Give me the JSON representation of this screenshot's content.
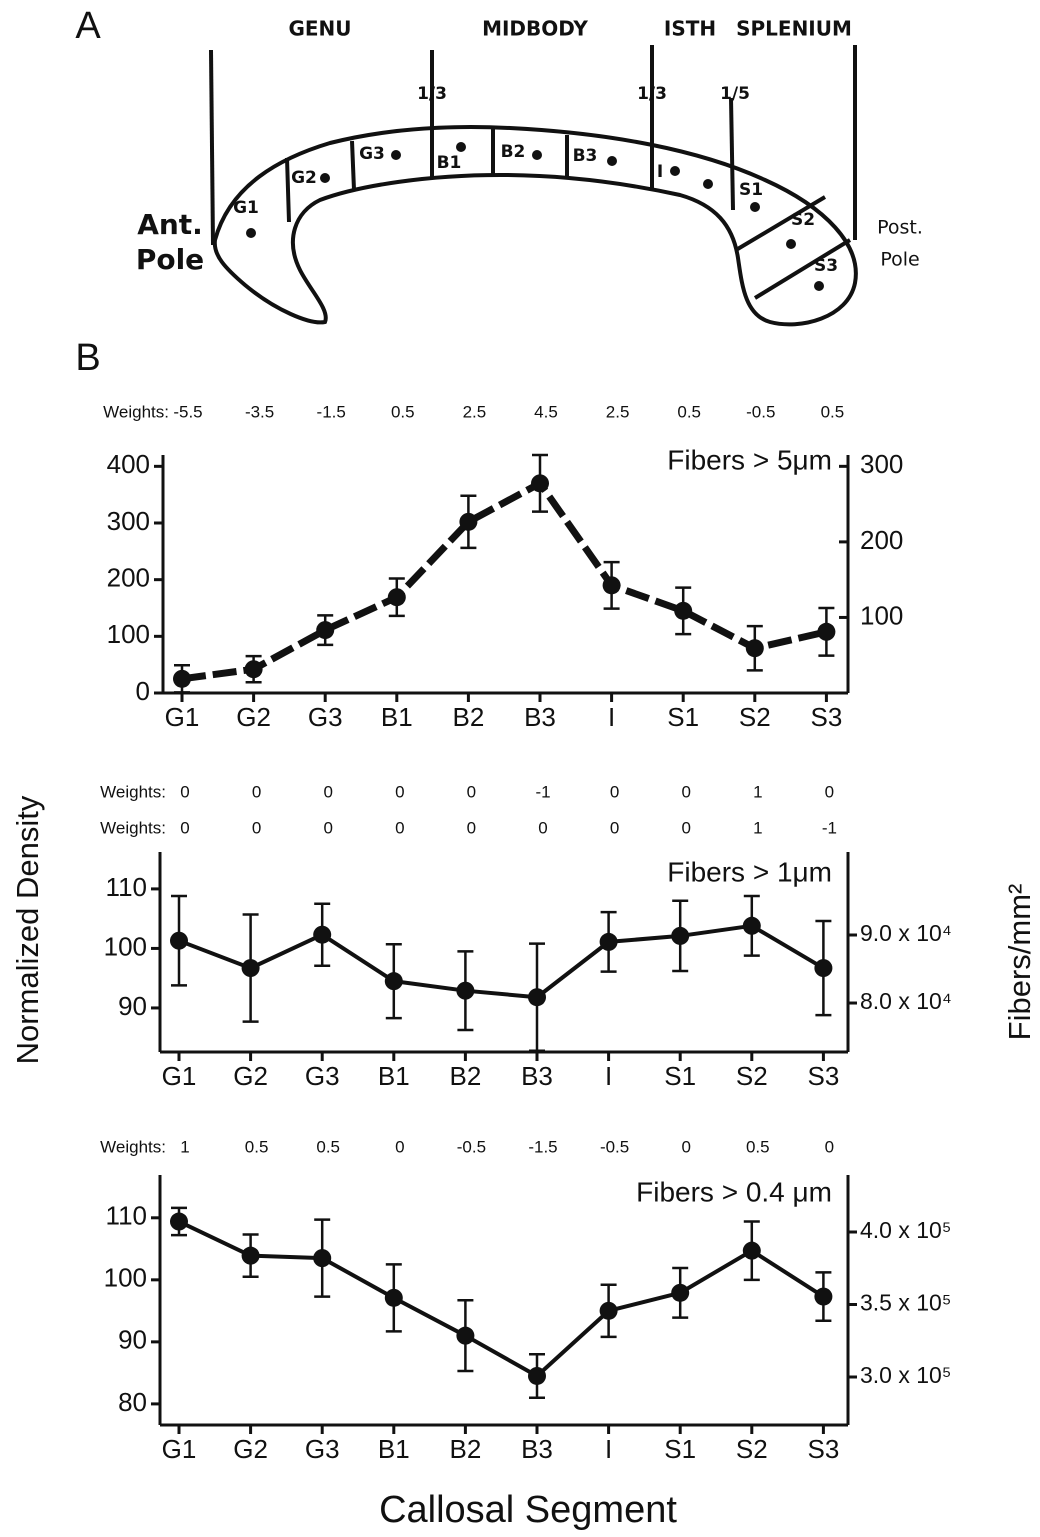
{
  "panel_labels": [
    "A",
    "B"
  ],
  "diagram": {
    "regions": [
      "GENU",
      "MIDBODY",
      "ISTH",
      "SPLENIUM"
    ],
    "fractions": [
      "1/3",
      "1/3",
      "1/5"
    ],
    "segments": [
      "G1",
      "G2",
      "G3",
      "B1",
      "B2",
      "B3",
      "I",
      "S1",
      "S2",
      "S3"
    ],
    "anterior_pole": [
      "Ant.",
      "Pole"
    ],
    "posterior_pole": [
      "Post.",
      "Pole"
    ]
  },
  "chart_data": [
    {
      "type": "line",
      "annotation": "Fibers > 5μm",
      "line_style": "dashed",
      "weights_label": "Weights:",
      "weights": [
        [
          -5.5,
          -3.5,
          -1.5,
          0.5,
          2.5,
          4.5,
          2.5,
          0.5,
          -0.5,
          0.5
        ]
      ],
      "categories": [
        "G1",
        "G2",
        "G3",
        "B1",
        "B2",
        "B3",
        "I",
        "S1",
        "S2",
        "S3"
      ],
      "series": [
        {
          "color": "#111111",
          "values": [
            25,
            42,
            111,
            169,
            302,
            370,
            190,
            145,
            79,
            108
          ],
          "errors": [
            24,
            23,
            26,
            33,
            46,
            50,
            41,
            41,
            39,
            42
          ]
        }
      ],
      "ylim": [
        0,
        420
      ],
      "yticks": [
        0,
        100,
        200,
        300,
        400
      ],
      "y2lim": [
        0,
        315
      ],
      "y2ticks": [
        100,
        200,
        300
      ]
    },
    {
      "type": "line",
      "annotation": "Fibers > 1μm",
      "line_style": "solid",
      "ylabel": "Normalized Density",
      "y2label": "Fibers/mm²",
      "weights_label": "Weights:",
      "weights": [
        [
          0,
          0,
          0,
          0,
          0,
          -1,
          0,
          0,
          1,
          0
        ],
        [
          0,
          0,
          0,
          0,
          0,
          0,
          0,
          0,
          1,
          -1
        ]
      ],
      "categories": [
        "G1",
        "G2",
        "G3",
        "B1",
        "B2",
        "B3",
        "I",
        "S1",
        "S2",
        "S3"
      ],
      "series": [
        {
          "color": "#111111",
          "values": [
            101.3,
            96.7,
            102.3,
            94.5,
            92.9,
            91.8,
            101.1,
            102.1,
            103.8,
            96.7
          ],
          "errors": [
            7.5,
            9.0,
            5.2,
            6.2,
            6.6,
            9.0,
            5.0,
            5.9,
            5.0,
            7.9
          ]
        }
      ],
      "ylim": [
        82.6,
        116.2
      ],
      "yticks": [
        90,
        100,
        110
      ],
      "y2lim": [
        72800,
        102200
      ],
      "y2ticks": [
        {
          "value": 80000,
          "label": "8.0 x 10⁴"
        },
        {
          "value": 90000,
          "label": "9.0 x 10⁴"
        }
      ]
    },
    {
      "type": "line",
      "annotation": "Fibers > 0.4 μm",
      "line_style": "solid",
      "xlabel": "Callosal Segment",
      "weights_label": "Weights:",
      "weights": [
        [
          1,
          0.5,
          0.5,
          0,
          -0.5,
          -1.5,
          -0.5,
          0,
          0.5,
          0
        ]
      ],
      "categories": [
        "G1",
        "G2",
        "G3",
        "B1",
        "B2",
        "B3",
        "I",
        "S1",
        "S2",
        "S3"
      ],
      "series": [
        {
          "color": "#111111",
          "values": [
            109.4,
            103.9,
            103.5,
            97.1,
            91.0,
            84.5,
            95.0,
            97.9,
            104.7,
            97.3
          ],
          "errors": [
            2.2,
            3.4,
            6.2,
            5.4,
            5.7,
            3.5,
            4.2,
            4.0,
            4.7,
            3.9
          ]
        }
      ],
      "ylim": [
        76.6,
        116.9
      ],
      "yticks": [
        80,
        90,
        100,
        110
      ],
      "y2lim": [
        266900,
        439300
      ],
      "y2ticks": [
        {
          "value": 300000,
          "label": "3.0 x 10⁵"
        },
        {
          "value": 350000,
          "label": "3.5 x 10⁵"
        },
        {
          "value": 400000,
          "label": "4.0 x 10⁵"
        }
      ]
    }
  ]
}
